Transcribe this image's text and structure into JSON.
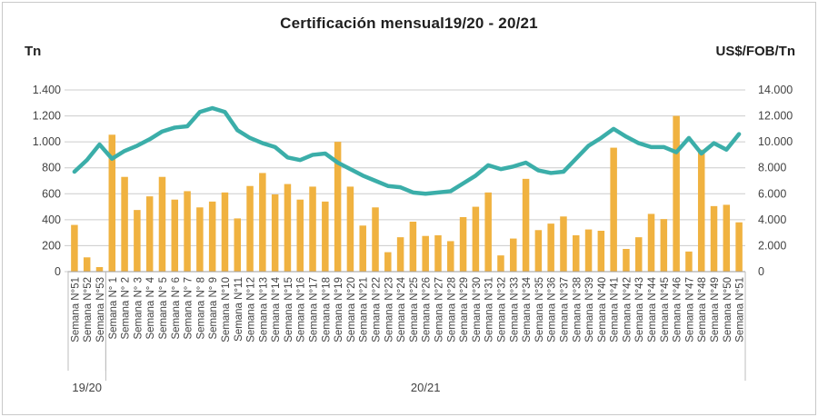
{
  "chart_data": {
    "type": "combo",
    "title": "Certificación mensual19/20 - 20/21",
    "left_axis": {
      "label": "Tn",
      "max": 1400,
      "ticks": [
        "0",
        "200",
        "400",
        "600",
        "800",
        "1.000",
        "1.200",
        "1.400"
      ]
    },
    "right_axis": {
      "label": "US$/FOB/Tn",
      "max": 14000,
      "ticks": [
        "0",
        "2.000",
        "4.000",
        "6.000",
        "8.000",
        "10.000",
        "12.000",
        "14.000"
      ]
    },
    "categories": [
      "Semana N°51",
      "Semana N°52",
      "Semana N°53",
      "Semana N° 1",
      "Semana N° 2",
      "Semana N° 3",
      "Semana N° 4",
      "Semana N° 5",
      "Semana N° 6",
      "Semana N° 7",
      "Semana N° 8",
      "Semana N° 9",
      "Semana N°10",
      "Semana N°11",
      "Semana N°12",
      "Semana N°13",
      "Semana N°14",
      "Semana N°15",
      "Semana N°16",
      "Semana N°17",
      "Semana N°18",
      "Semana N°19",
      "Semana N°20",
      "Semana N°21",
      "Semana N°22",
      "Semana N°23",
      "Semana N°24",
      "Semana N°25",
      "Semana N°26",
      "Semana N°27",
      "Semana N°28",
      "Semana N°29",
      "Semana N°30",
      "Semana N°31",
      "Semana N°32",
      "Semana N°33",
      "Semana N°34",
      "Semana N°35",
      "Semana N°36",
      "Semana N°37",
      "Semana N°38",
      "Semana N°39",
      "Semana N°40",
      "Semana N°41",
      "Semana N°42",
      "Semana N°43",
      "Semana N°44",
      "Semana N°45",
      "Semana N°46",
      "Semana N°47",
      "Semana N°48",
      "Semana N°49",
      "Semana N°50",
      "Semana N°51"
    ],
    "series": [
      {
        "name": "Tn",
        "type": "bar",
        "axis": "left",
        "color": "#F0B240",
        "values": [
          360,
          110,
          35,
          1055,
          730,
          475,
          580,
          730,
          555,
          620,
          495,
          540,
          610,
          410,
          660,
          760,
          595,
          675,
          555,
          655,
          540,
          1000,
          655,
          355,
          495,
          150,
          265,
          385,
          275,
          280,
          235,
          420,
          500,
          610,
          125,
          255,
          715,
          320,
          370,
          425,
          280,
          325,
          315,
          955,
          175,
          265,
          445,
          405,
          1200,
          155,
          940,
          505,
          515,
          380
        ]
      },
      {
        "name": "US$/FOB/Tn",
        "type": "line",
        "axis": "right",
        "color": "#3BAEA9",
        "values": [
          7700,
          8600,
          9800,
          8700,
          9300,
          9700,
          10200,
          10800,
          11100,
          11200,
          12300,
          12600,
          12300,
          10900,
          10300,
          9900,
          9600,
          8800,
          8600,
          9000,
          9100,
          8400,
          7900,
          7400,
          7000,
          6600,
          6500,
          6100,
          6000,
          6100,
          6200,
          6800,
          7400,
          8200,
          7900,
          8100,
          8400,
          7800,
          7600,
          7700,
          8700,
          9700,
          10300,
          11000,
          10400,
          9900,
          9600,
          9600,
          9200,
          10300,
          9100,
          9900,
          9400,
          10600
        ]
      }
    ],
    "groups": [
      {
        "label": "19/20",
        "from": 0,
        "to": 2
      },
      {
        "label": "20/21",
        "from": 3,
        "to": 53
      }
    ],
    "grid": "horizontal",
    "legend": "none"
  }
}
